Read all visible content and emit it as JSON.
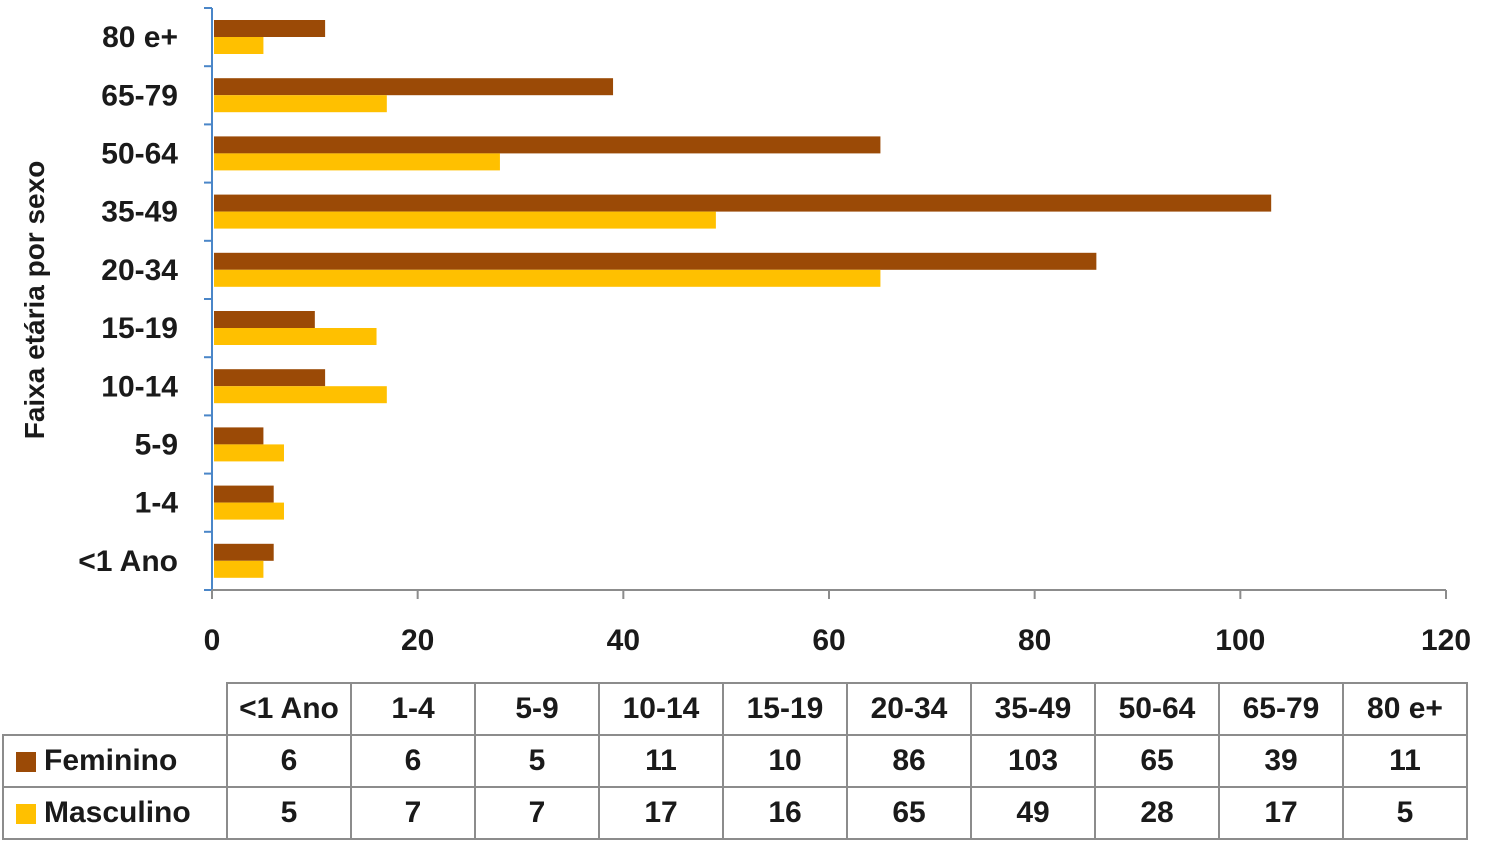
{
  "chart_data": {
    "type": "bar",
    "orientation": "horizontal",
    "ylabel": "Faixa etária por sexo",
    "categories": [
      "<1 Ano",
      "1-4",
      "5-9",
      "10-14",
      "15-19",
      "20-34",
      "35-49",
      "50-64",
      "65-79",
      "80 e+"
    ],
    "series": [
      {
        "name": "Feminino",
        "color": "#9b4a06",
        "values": [
          6,
          6,
          5,
          11,
          10,
          86,
          103,
          65,
          39,
          11
        ]
      },
      {
        "name": "Masculino",
        "color": "#ffc000",
        "values": [
          5,
          7,
          7,
          17,
          16,
          65,
          49,
          28,
          17,
          5
        ]
      }
    ],
    "xlim": [
      0,
      120
    ],
    "xticks": [
      0,
      20,
      40,
      60,
      80,
      100,
      120
    ],
    "grid": false,
    "legend": "data-table-below"
  }
}
